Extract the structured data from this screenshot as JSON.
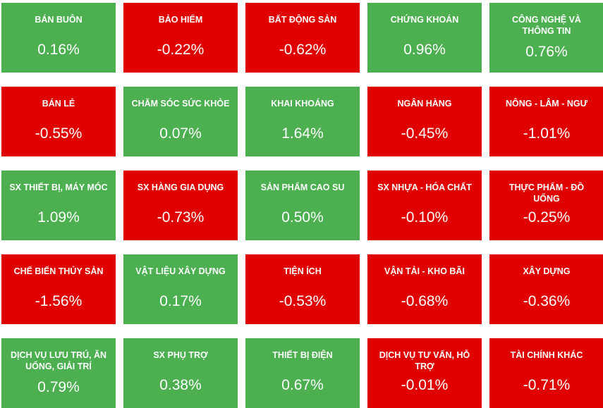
{
  "colors": {
    "up": "#4caf50",
    "down": "#e00000",
    "text": "#ffffff"
  },
  "sectors": [
    {
      "name": "BÁN BUÔN",
      "change": "0.16%",
      "direction": "up"
    },
    {
      "name": "BẢO HIỂM",
      "change": "-0.22%",
      "direction": "down"
    },
    {
      "name": "BẤT ĐỘNG SẢN",
      "change": "-0.62%",
      "direction": "down"
    },
    {
      "name": "CHỨNG KHOÁN",
      "change": "0.96%",
      "direction": "up"
    },
    {
      "name": "CÔNG NGHỆ VÀ THÔNG TIN",
      "change": "0.76%",
      "direction": "up"
    },
    {
      "name": "BÁN LẺ",
      "change": "-0.55%",
      "direction": "down"
    },
    {
      "name": "CHĂM SÓC SỨC KHỎE",
      "change": "0.07%",
      "direction": "up"
    },
    {
      "name": "KHAI KHOÁNG",
      "change": "1.64%",
      "direction": "up"
    },
    {
      "name": "NGÂN HÀNG",
      "change": "-0.45%",
      "direction": "down"
    },
    {
      "name": "NÔNG - LÂM - NGƯ",
      "change": "-1.01%",
      "direction": "down"
    },
    {
      "name": "SX THIẾT BỊ, MÁY MÓC",
      "change": "1.09%",
      "direction": "up"
    },
    {
      "name": "SX HÀNG GIA DỤNG",
      "change": "-0.73%",
      "direction": "down"
    },
    {
      "name": "SẢN PHẨM CAO SU",
      "change": "0.50%",
      "direction": "up"
    },
    {
      "name": "SX NHỰA - HÓA CHẤT",
      "change": "-0.10%",
      "direction": "down"
    },
    {
      "name": "THỰC PHẨM - ĐỒ UỐNG",
      "change": "-0.25%",
      "direction": "down"
    },
    {
      "name": "CHẾ BIẾN THỦY SẢN",
      "change": "-1.56%",
      "direction": "down"
    },
    {
      "name": "VẬT LIỆU XÂY DỰNG",
      "change": "0.17%",
      "direction": "up"
    },
    {
      "name": "TIỆN ÍCH",
      "change": "-0.53%",
      "direction": "down"
    },
    {
      "name": "VẬN TẢI - KHO BÃI",
      "change": "-0.68%",
      "direction": "down"
    },
    {
      "name": "XÂY DỰNG",
      "change": "-0.36%",
      "direction": "down"
    },
    {
      "name": "DỊCH VỤ LƯU TRÚ, ĂN UỐNG, GIẢI TRÍ",
      "change": "0.79%",
      "direction": "up"
    },
    {
      "name": "SX PHỤ TRỢ",
      "change": "0.38%",
      "direction": "up"
    },
    {
      "name": "THIẾT BỊ ĐIỆN",
      "change": "0.67%",
      "direction": "up"
    },
    {
      "name": "DỊCH VỤ TƯ VẤN, HỖ TRỢ",
      "change": "-0.01%",
      "direction": "down"
    },
    {
      "name": "TÀI CHÍNH KHÁC",
      "change": "-0.71%",
      "direction": "down"
    }
  ]
}
